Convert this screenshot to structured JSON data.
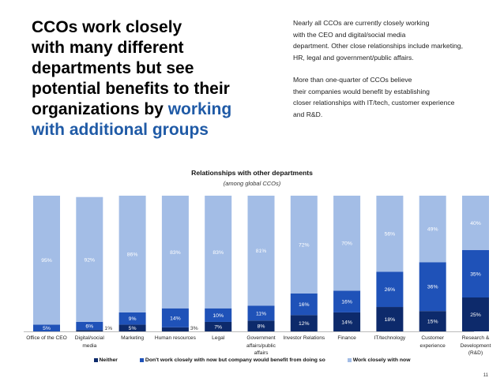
{
  "headline": {
    "line1": "CCOs work closely",
    "line2": "with many different",
    "line3": "departments but see",
    "line4a": "potential benefits to their",
    "line5a": "organizations by ",
    "line5b": "working",
    "line6": "with additional groups"
  },
  "side_text": {
    "para1_l1": "Nearly all CCOs are currently closely working",
    "para1_l2": "with the CEO and digital/social media",
    "para1_l3": "department. Other close relationships include marketing,",
    "para1_l4": "HR, legal and government/public affairs.",
    "para2_l1": "More than one-quarter of CCOs believe",
    "para2_l2": "their companies would benefit by establishing",
    "para2_l3": "closer relationships with IT/tech, customer experience",
    "para2_l4": "and R&D."
  },
  "page_number": "11",
  "colors": {
    "neither": "#0d2a6b",
    "benefit": "#1f52b8",
    "work_closely": "#a3bde6"
  },
  "chart_data": {
    "type": "bar",
    "stacked": true,
    "title": "Relationships with other departments",
    "subtitle": "(among global CCOs)",
    "categories": [
      [
        "Office of the CEO"
      ],
      [
        "Digital/social",
        "media"
      ],
      [
        "Marketing"
      ],
      [
        "Human resources"
      ],
      [
        "Legal"
      ],
      [
        "Government",
        "affairs/public",
        "affairs"
      ],
      [
        "Investor Relations"
      ],
      [
        "Finance"
      ],
      [
        "IT/technology"
      ],
      [
        "Customer",
        "experience"
      ],
      [
        "Research &",
        "Development",
        "(R&D)"
      ]
    ],
    "series": [
      {
        "name": "Neither",
        "values": [
          0,
          1,
          5,
          3,
          7,
          8,
          12,
          14,
          18,
          15,
          25
        ]
      },
      {
        "name": "Don't work closely with now but company would benefit from doing so",
        "values": [
          5,
          6,
          9,
          14,
          10,
          11,
          16,
          16,
          26,
          36,
          35
        ]
      },
      {
        "name": "Work closely with now",
        "values": [
          95,
          92,
          86,
          83,
          83,
          81,
          72,
          70,
          56,
          49,
          40
        ]
      }
    ],
    "ylim": [
      0,
      100
    ],
    "value_suffix": "%",
    "legend_position": "bottom",
    "grid": false
  }
}
